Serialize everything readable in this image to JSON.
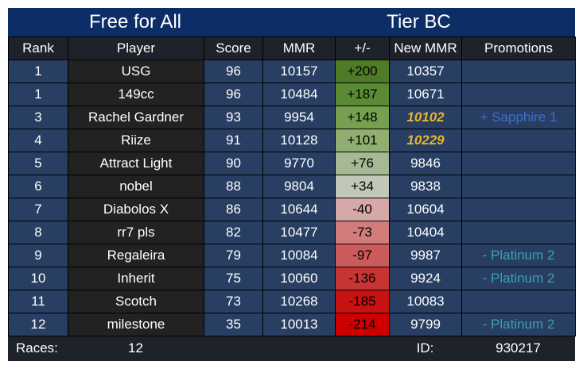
{
  "header": {
    "left_title": "Free for All",
    "right_title": "Tier BC"
  },
  "table": {
    "columns": [
      "Rank",
      "Player",
      "Score",
      "MMR",
      "+/-",
      "New MMR",
      "Promotions"
    ],
    "rows": [
      [
        "1",
        "USG",
        "96",
        "10157",
        "+200",
        "10357"
      ],
      [
        "1",
        "149cc",
        "96",
        "10484",
        "+187",
        "10671"
      ],
      [
        "3",
        "Rachel Gardner",
        "93",
        "9954",
        "+148",
        "10102",
        "+ Sapphire 1"
      ],
      [
        "4",
        "Riize",
        "91",
        "10128",
        "+101",
        "10229"
      ],
      [
        "5",
        "Attract Light",
        "90",
        "9770",
        "+76",
        "9846"
      ],
      [
        "6",
        "nobel",
        "88",
        "9804",
        "+34",
        "9838"
      ],
      [
        "7",
        "Diabolos X",
        "86",
        "10644",
        "-40",
        "10604"
      ],
      [
        "8",
        "rr7 pls",
        "82",
        "10477",
        "-73",
        "10404"
      ],
      [
        "9",
        "Regaleira",
        "79",
        "10084",
        "-97",
        "9987",
        "- Platinum 2"
      ],
      [
        "10",
        "Inherit",
        "75",
        "10060",
        "-136",
        "9924",
        "- Platinum 2"
      ],
      [
        "11",
        "Scotch",
        "73",
        "10268",
        "-185",
        "10083"
      ],
      [
        "12",
        "milestone",
        "35",
        "10013",
        "-214",
        "9799",
        "- Platinum 2"
      ]
    ]
  },
  "footer": {
    "races_label": "Races:",
    "races": "12",
    "id_label": "ID:",
    "id": "930217"
  }
}
